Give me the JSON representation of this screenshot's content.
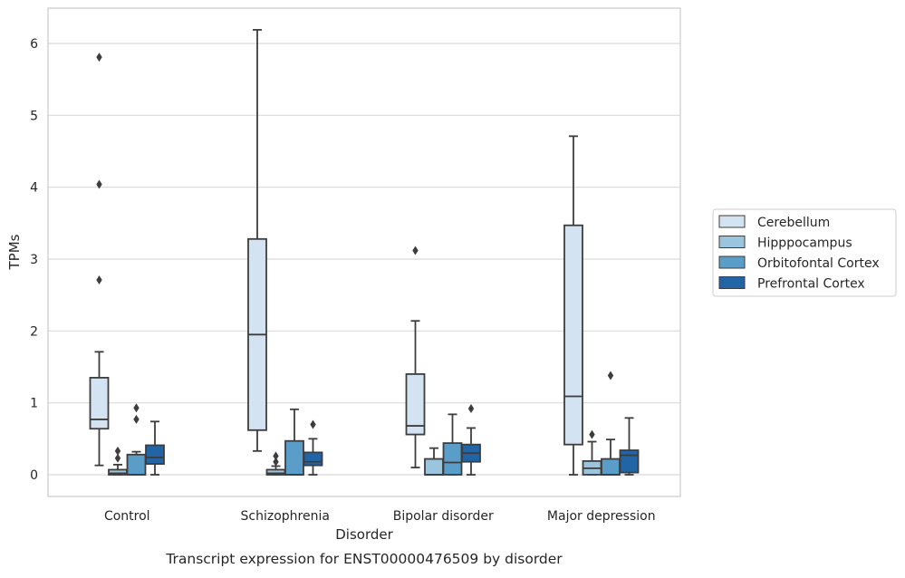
{
  "chart_data": {
    "type": "box",
    "title": "Transcript expression for ENST00000476509 by disorder",
    "xlabel": "Disorder",
    "ylabel": "TPMs",
    "ylim": [
      -0.3,
      6.5
    ],
    "yticks": [
      0,
      1,
      2,
      3,
      4,
      5,
      6
    ],
    "grid": "horizontal",
    "legend_position": "right",
    "categories": [
      "Control",
      "Schizophrenia",
      "Bipolar disorder",
      "Major depression"
    ],
    "series": [
      {
        "name": "Cerebellum",
        "color": "#d4e3f2",
        "boxes": [
          {
            "whisker_low": 0.13,
            "q1": 0.64,
            "median": 0.77,
            "q3": 1.35,
            "whisker_high": 1.71,
            "outliers": [
              2.71,
              4.04,
              5.81
            ]
          },
          {
            "whisker_low": 0.33,
            "q1": 0.62,
            "median": 1.95,
            "q3": 3.28,
            "whisker_high": 6.19,
            "outliers": []
          },
          {
            "whisker_low": 0.1,
            "q1": 0.56,
            "median": 0.68,
            "q3": 1.4,
            "whisker_high": 2.14,
            "outliers": [
              3.12
            ]
          },
          {
            "whisker_low": 0.0,
            "q1": 0.42,
            "median": 1.09,
            "q3": 3.47,
            "whisker_high": 4.71,
            "outliers": []
          }
        ]
      },
      {
        "name": "Hipppocampus",
        "color": "#9bc5df",
        "boxes": [
          {
            "whisker_low": 0.0,
            "q1": 0.0,
            "median": 0.02,
            "q3": 0.07,
            "whisker_high": 0.14,
            "outliers": [
              0.23,
              0.33
            ]
          },
          {
            "whisker_low": 0.0,
            "q1": 0.0,
            "median": 0.02,
            "q3": 0.07,
            "whisker_high": 0.12,
            "outliers": [
              0.18,
              0.26
            ]
          },
          {
            "whisker_low": 0.0,
            "q1": 0.0,
            "median": 0.0,
            "q3": 0.22,
            "whisker_high": 0.37,
            "outliers": []
          },
          {
            "whisker_low": 0.0,
            "q1": 0.0,
            "median": 0.09,
            "q3": 0.19,
            "whisker_high": 0.46,
            "outliers": [
              0.56
            ]
          }
        ]
      },
      {
        "name": "Orbitofontal Cortex",
        "color": "#5a9dc9",
        "boxes": [
          {
            "whisker_low": 0.0,
            "q1": 0.0,
            "median": 0.0,
            "q3": 0.28,
            "whisker_high": 0.32,
            "outliers": [
              0.77,
              0.93
            ]
          },
          {
            "whisker_low": 0.0,
            "q1": 0.0,
            "median": 0.0,
            "q3": 0.47,
            "whisker_high": 0.91,
            "outliers": []
          },
          {
            "whisker_low": 0.0,
            "q1": 0.0,
            "median": 0.17,
            "q3": 0.44,
            "whisker_high": 0.84,
            "outliers": []
          },
          {
            "whisker_low": 0.0,
            "q1": 0.0,
            "median": 0.0,
            "q3": 0.22,
            "whisker_high": 0.49,
            "outliers": [
              1.38
            ]
          }
        ]
      },
      {
        "name": "Prefrontal Cortex",
        "color": "#2265a6",
        "boxes": [
          {
            "whisker_low": 0.0,
            "q1": 0.15,
            "median": 0.24,
            "q3": 0.41,
            "whisker_high": 0.74,
            "outliers": []
          },
          {
            "whisker_low": 0.0,
            "q1": 0.13,
            "median": 0.18,
            "q3": 0.31,
            "whisker_high": 0.5,
            "outliers": [
              0.7
            ]
          },
          {
            "whisker_low": 0.0,
            "q1": 0.18,
            "median": 0.3,
            "q3": 0.42,
            "whisker_high": 0.65,
            "outliers": [
              0.92
            ]
          },
          {
            "whisker_low": 0.0,
            "q1": 0.03,
            "median": 0.27,
            "q3": 0.34,
            "whisker_high": 0.79,
            "outliers": []
          }
        ]
      }
    ]
  }
}
